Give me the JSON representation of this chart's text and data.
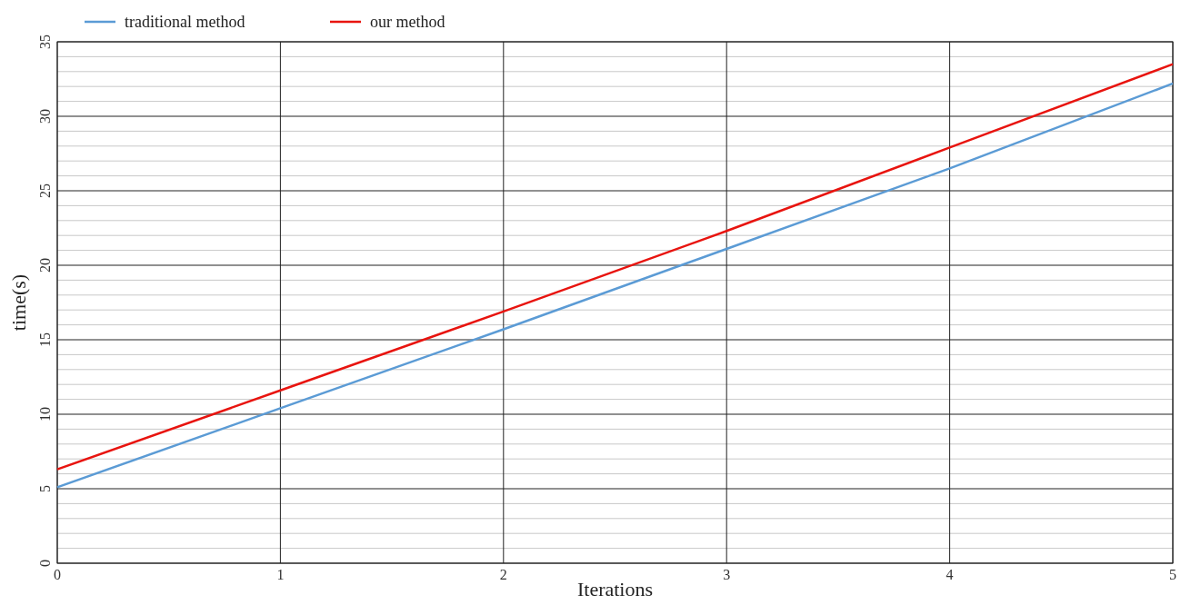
{
  "chart_data": {
    "type": "line",
    "xlabel": "Iterations",
    "ylabel": "time(s)",
    "x": [
      0,
      1,
      2,
      3,
      4,
      5
    ],
    "series": [
      {
        "name": "traditional method",
        "color": "#5b9bd5",
        "values": [
          5.1,
          10.4,
          15.7,
          21.1,
          26.5,
          32.2
        ]
      },
      {
        "name": "our method",
        "color": "#e8140f",
        "values": [
          6.3,
          11.6,
          16.9,
          22.3,
          27.9,
          33.5
        ]
      }
    ],
    "xlim": [
      0,
      5
    ],
    "xticks": [
      0,
      1,
      2,
      3,
      4,
      5
    ],
    "ylim": [
      0,
      35
    ],
    "yticks": [
      0,
      {
        "value": 1,
        "label": null
      },
      {
        "value": 2,
        "label": null
      },
      {
        "value": 3,
        "label": null
      },
      {
        "value": 4,
        "label": null
      },
      5,
      {
        "value": 6,
        "label": null
      },
      {
        "value": 7,
        "label": null
      },
      {
        "value": 8,
        "label": null
      },
      {
        "value": 9,
        "label": null
      },
      10,
      {
        "value": 11,
        "label": null
      },
      {
        "value": 12,
        "label": null
      },
      {
        "value": 13,
        "label": null
      },
      {
        "value": 14,
        "label": null
      },
      15,
      {
        "value": 16,
        "label": null
      },
      {
        "value": 17,
        "label": null
      },
      {
        "value": 18,
        "label": null
      },
      {
        "value": 19,
        "label": null
      },
      20,
      {
        "value": 21,
        "label": null
      },
      {
        "value": 22,
        "label": null
      },
      {
        "value": 23,
        "label": null
      },
      {
        "value": 24,
        "label": null
      },
      25,
      {
        "value": 26,
        "label": null
      },
      {
        "value": 27,
        "label": null
      },
      {
        "value": 28,
        "label": null
      },
      {
        "value": 29,
        "label": null
      },
      30,
      {
        "value": 31,
        "label": null
      },
      {
        "value": 32,
        "label": null
      },
      {
        "value": 33,
        "label": null
      },
      {
        "value": 34,
        "label": null
      },
      35
    ],
    "grid": true,
    "legend": "top left",
    "marker": "none",
    "line_style": "solid"
  }
}
